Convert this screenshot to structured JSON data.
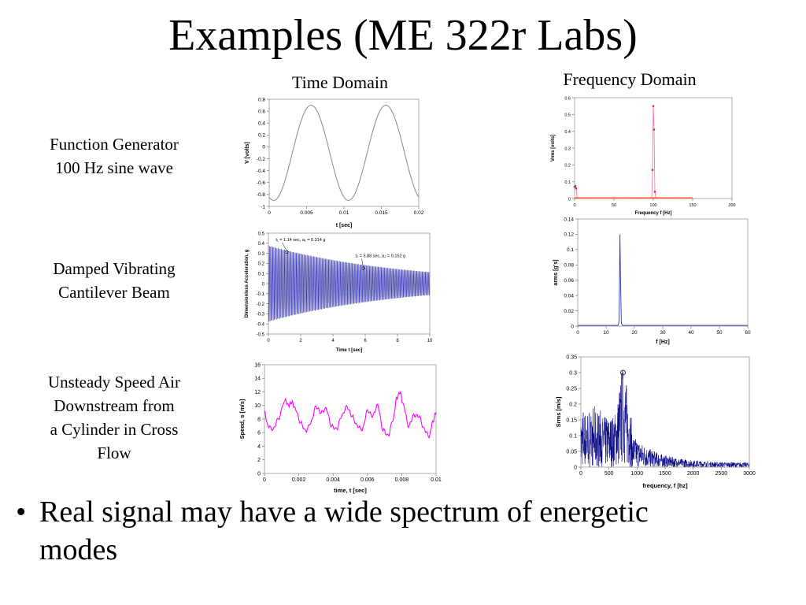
{
  "slide": {
    "title": "Examples (ME 322r Labs)",
    "col_time": "Time Domain",
    "col_freq": "Frequency Domain",
    "rows": [
      {
        "line1": "Function Generator",
        "line2": "100 Hz sine wave"
      },
      {
        "line1": "Damped Vibrating",
        "line2": "Cantilever Beam"
      },
      {
        "line1": "Unsteady Speed Air",
        "line2": "Downstream from",
        "line3": "a Cylinder in Cross",
        "line4": "Flow"
      }
    ],
    "bullet_mark": "•",
    "bullet_line1": "Real signal may have a wide spectrum of energetic",
    "bullet_line2": "modes",
    "colors": {
      "gray": "#888888",
      "blue": "#3333aa",
      "magenta": "#ff00ff",
      "navy": "#000080",
      "orange": "#e07020",
      "pink": "#ff66aa"
    }
  },
  "chart_data": [
    {
      "id": "sine-time",
      "type": "line",
      "xlabel": "t [sec]",
      "ylabel": "V [volts]",
      "xlim": [
        0,
        0.02
      ],
      "ylim": [
        -1,
        0.8
      ],
      "xticks": [
        0,
        0.005,
        0.01,
        0.015,
        0.02
      ],
      "xtick_labels": [
        "0",
        "0.005",
        "0.01",
        "0.015",
        "0.02"
      ],
      "yticks": [
        -1,
        -0.8,
        -0.6,
        -0.4,
        -0.2,
        0,
        0.2,
        0.4,
        0.6,
        0.8
      ],
      "ytick_labels": [
        "-1",
        "-0.8",
        "-0.6",
        "-0.4",
        "-0.2",
        "0",
        "0.2",
        "0.4",
        "0.6",
        "0.8"
      ],
      "series": [
        {
          "frequency": 100,
          "amplitude": 0.8,
          "offset": -0.1,
          "peak_time": 0.0056,
          "color": "#888888"
        }
      ]
    },
    {
      "id": "sine-freq",
      "type": "line",
      "xlabel": "Frequency f [Hz]",
      "ylabel": "Vrms [volts]",
      "xlim": [
        0,
        200
      ],
      "ylim": [
        0,
        0.6
      ],
      "xticks": [
        0,
        50,
        100,
        150,
        200
      ],
      "xtick_labels": [
        "0",
        "50",
        "100",
        "150",
        "200"
      ],
      "yticks": [
        0,
        0.1,
        0.2,
        0.3,
        0.4,
        0.5,
        0.6
      ],
      "ytick_labels": [
        "0",
        "0.1",
        "0.2",
        "0.3",
        "0.4",
        "0.5",
        "0.6"
      ],
      "series": [
        {
          "x": [
            0,
            1,
            2,
            3,
            5,
            10,
            50,
            95,
            98,
            99,
            100,
            101,
            102,
            103,
            106,
            150
          ],
          "y": [
            0.07,
            0.075,
            0.06,
            0.01,
            0.003,
            0.002,
            0.002,
            0.003,
            0.005,
            0.17,
            0.55,
            0.41,
            0.04,
            0.01,
            0.003,
            0.002
          ],
          "color": "#e07020"
        }
      ]
    },
    {
      "id": "beam-time",
      "type": "line",
      "xlabel": "Time t [sec]",
      "ylabel": "Dimensionless Acceleration, g",
      "xlim": [
        0,
        10
      ],
      "ylim": [
        -0.5,
        0.5
      ],
      "xticks": [
        0,
        2,
        4,
        6,
        8,
        10
      ],
      "xtick_labels": [
        "0",
        "2",
        "4",
        "6",
        "8",
        "10"
      ],
      "yticks": [
        -0.5,
        -0.4,
        -0.3,
        -0.2,
        -0.1,
        0,
        0.1,
        0.2,
        0.3,
        0.4,
        0.5
      ],
      "ytick_labels": [
        "-0.5",
        "-0.4",
        "-0.3",
        "-0.2",
        "-0.1",
        "0",
        "0.1",
        "0.2",
        "0.3",
        "0.4",
        "0.5"
      ],
      "series": [
        {
          "frequency": 15,
          "initial_amplitude": 0.38,
          "decay_rate": 0.12,
          "color": "#3333aa"
        }
      ],
      "annotations": [
        {
          "t": 1.14,
          "a": 0.314,
          "text": "t₁ = 1.14 sec, a₁ = 0.314 g"
        },
        {
          "t": 5.88,
          "a": 0.152,
          "text": "t₂ = 5.88 sec, a₂ = 0.152 g"
        }
      ]
    },
    {
      "id": "beam-freq",
      "type": "line",
      "xlabel": "f [Hz]",
      "ylabel": "arms [g's]",
      "xlim": [
        0,
        60
      ],
      "ylim": [
        0,
        0.14
      ],
      "xticks": [
        0,
        10,
        20,
        30,
        40,
        50,
        60
      ],
      "xtick_labels": [
        "0",
        "10",
        "20",
        "30",
        "40",
        "50",
        "60"
      ],
      "yticks": [
        0,
        0.02,
        0.04,
        0.06,
        0.08,
        0.1,
        0.12,
        0.14
      ],
      "ytick_labels": [
        "0",
        "0.02",
        "0.04",
        "0.06",
        "0.08",
        "0.1",
        "0.12",
        "0.14"
      ],
      "series": [
        {
          "x": [
            0,
            14.2,
            14.6,
            14.9,
            15.1,
            15.4,
            15.8,
            60
          ],
          "y": [
            0.001,
            0.001,
            0.006,
            0.12,
            0.06,
            0.004,
            0.001,
            0.001
          ],
          "color": "#3333aa"
        }
      ]
    },
    {
      "id": "flow-time",
      "type": "line",
      "xlabel": "time, t [sec]",
      "ylabel": "Speed, s [m/s]",
      "xlim": [
        0,
        0.01
      ],
      "ylim": [
        0,
        16
      ],
      "xticks": [
        0,
        0.002,
        0.004,
        0.006,
        0.008,
        0.01
      ],
      "xtick_labels": [
        "0",
        "0.002",
        "0.004",
        "0.006",
        "0.008",
        "0.01"
      ],
      "yticks": [
        0,
        2,
        4,
        6,
        8,
        10,
        12,
        14,
        16
      ],
      "ytick_labels": [
        "0",
        "2",
        "4",
        "6",
        "8",
        "10",
        "12",
        "14",
        "16"
      ],
      "series": [
        {
          "x": [
            0,
            0.0002,
            0.0005,
            0.0008,
            0.0012,
            0.0014,
            0.0016,
            0.0018,
            0.0021,
            0.0024,
            0.0027,
            0.003,
            0.0033,
            0.0036,
            0.0039,
            0.0042,
            0.0045,
            0.0048,
            0.0051,
            0.0054,
            0.0057,
            0.006,
            0.0063,
            0.0066,
            0.0069,
            0.0072,
            0.0075,
            0.0077,
            0.0079,
            0.0081,
            0.0084,
            0.0087,
            0.009,
            0.0093,
            0.0096,
            0.0098,
            0.01
          ],
          "y": [
            9,
            7,
            6.5,
            8,
            10.8,
            10,
            10.5,
            9.5,
            7.5,
            6.2,
            7.5,
            9.8,
            9,
            9.5,
            7,
            6.5,
            8.5,
            9.8,
            8.5,
            7,
            6.5,
            9.2,
            8.5,
            10,
            6.5,
            5.5,
            8,
            11,
            12,
            10,
            7,
            8.5,
            8.5,
            6.5,
            5.5,
            7.5,
            9
          ],
          "color": "#ff00ff"
        }
      ]
    },
    {
      "id": "flow-freq",
      "type": "line",
      "xlabel": "frequency, f [hz]",
      "ylabel": "Srms [m/s]",
      "xlim": [
        0,
        3000
      ],
      "ylim": [
        0,
        0.35
      ],
      "xticks": [
        0,
        500,
        1000,
        1500,
        2000,
        2500,
        3000
      ],
      "xtick_labels": [
        "0",
        "500",
        "1000",
        "1500",
        "2000",
        "2500",
        "3000"
      ],
      "yticks": [
        0,
        0.05,
        0.1,
        0.15,
        0.2,
        0.25,
        0.3,
        0.35
      ],
      "ytick_labels": [
        "0",
        "0.05",
        "0.1",
        "0.15",
        "0.2",
        "0.25",
        "0.3",
        "0.35"
      ],
      "series": [
        {
          "peak_frequency": 750,
          "peak_value": 0.3,
          "color": "#000080"
        }
      ],
      "marker": {
        "x": 750,
        "y": 0.3
      }
    }
  ]
}
